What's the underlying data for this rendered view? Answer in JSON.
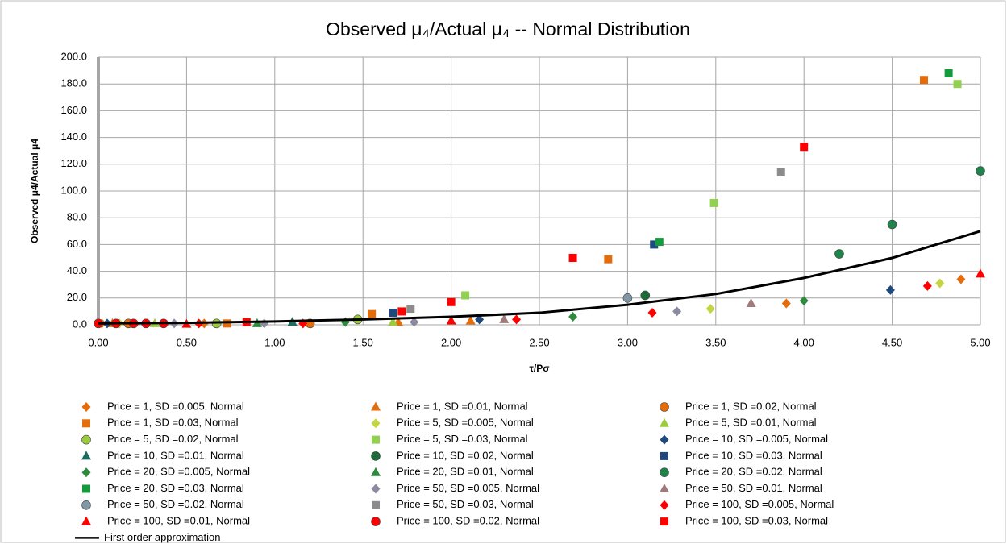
{
  "chart_data": {
    "type": "scatter",
    "title": "Observed μ₄/Actual μ₄ -- Normal Distribution",
    "x_label": "τ/Pσ",
    "y_label": "Observed μ4/Actual μ4",
    "xlim": [
      0,
      5
    ],
    "ylim": [
      0,
      200
    ],
    "grid": true,
    "legend": "bottom",
    "xticks": [
      {
        "value": 0,
        "label": "0.00"
      },
      {
        "value": 0.5,
        "label": "0.50"
      },
      {
        "value": 1,
        "label": "1.00"
      },
      {
        "value": 1.5,
        "label": "1.50"
      },
      {
        "value": 2,
        "label": "2.00"
      },
      {
        "value": 2.5,
        "label": "2.50"
      },
      {
        "value": 3,
        "label": "3.00"
      },
      {
        "value": 3.5,
        "label": "3.50"
      },
      {
        "value": 4,
        "label": "4.00"
      },
      {
        "value": 4.5,
        "label": "4.50"
      },
      {
        "value": 5,
        "label": "5.00"
      }
    ],
    "yticks": [
      {
        "value": 0,
        "label": "0.0"
      },
      {
        "value": 20,
        "label": "20.0"
      },
      {
        "value": 40,
        "label": "40.0"
      },
      {
        "value": 60,
        "label": "60.0"
      },
      {
        "value": 80,
        "label": "80.0"
      },
      {
        "value": 100,
        "label": "100.0"
      },
      {
        "value": 120,
        "label": "120.0"
      },
      {
        "value": 140,
        "label": "140.0"
      },
      {
        "value": 160,
        "label": "160.0"
      },
      {
        "value": 180,
        "label": "180.0"
      },
      {
        "value": 200,
        "label": "200.0"
      }
    ],
    "series": [
      {
        "name": "Price = 1, SD =0.005, Normal",
        "color": "#e46c0a",
        "marker": "diamond",
        "x": [
          0.02,
          0.6,
          3.9,
          4.89
        ],
        "values": [
          1,
          1,
          16,
          34
        ]
      },
      {
        "name": "Price = 1, SD =0.01, Normal",
        "color": "#e46c0a",
        "marker": "triangle",
        "x": [
          0.08,
          1.7,
          2.11
        ],
        "values": [
          1,
          2,
          3
        ]
      },
      {
        "name": "Price = 1, SD =0.02, Normal",
        "color": "#e46c0a",
        "marker": "circle",
        "x": [
          0.17,
          1.2
        ],
        "values": [
          1,
          1
        ]
      },
      {
        "name": "Price = 1, SD =0.03, Normal",
        "color": "#e46c0a",
        "marker": "square",
        "x": [
          0.73,
          1.55,
          2.89,
          4.68
        ],
        "values": [
          1,
          8,
          49,
          183
        ]
      },
      {
        "name": "Price = 5, SD =0.005, Normal",
        "color": "#c3d641",
        "marker": "diamond",
        "x": [
          0.12,
          3.47,
          4.77
        ],
        "values": [
          1,
          12,
          31
        ]
      },
      {
        "name": "Price = 5, SD =0.01, Normal",
        "color": "#9bcc3c",
        "marker": "triangle",
        "x": [
          0.32,
          1.67
        ],
        "values": [
          1,
          2
        ]
      },
      {
        "name": "Price = 5, SD =0.02, Normal",
        "color": "#9bcc3c",
        "marker": "circle",
        "x": [
          0.67,
          1.47
        ],
        "values": [
          1,
          4
        ]
      },
      {
        "name": "Price = 5, SD =0.03, Normal",
        "color": "#92d050",
        "marker": "square",
        "x": [
          2.08,
          3.49,
          4.87
        ],
        "values": [
          22,
          91,
          180
        ]
      },
      {
        "name": "Price = 10, SD =0.005, Normal",
        "color": "#1f497d",
        "marker": "diamond",
        "x": [
          0.05,
          2.16,
          4.49
        ],
        "values": [
          1,
          4,
          26
        ]
      },
      {
        "name": "Price = 10, SD =0.01, Normal",
        "color": "#1b6b5e",
        "marker": "triangle",
        "x": [
          1.1
        ],
        "values": [
          2
        ]
      },
      {
        "name": "Price = 10, SD =0.02, Normal",
        "color": "#1e6b3a",
        "marker": "circle",
        "x": [
          3.1
        ],
        "values": [
          22
        ]
      },
      {
        "name": "Price = 10, SD =0.03, Normal",
        "color": "#1f497d",
        "marker": "square",
        "x": [
          1.67,
          3.15
        ],
        "values": [
          9,
          60
        ]
      },
      {
        "name": "Price = 20, SD =0.005, Normal",
        "color": "#2e8b3e",
        "marker": "diamond",
        "x": [
          1.4,
          2.69,
          4.0
        ],
        "values": [
          2,
          6,
          18
        ]
      },
      {
        "name": "Price = 20, SD =0.01, Normal",
        "color": "#2e8b3e",
        "marker": "triangle",
        "x": [
          0.9
        ],
        "values": [
          1
        ]
      },
      {
        "name": "Price = 20, SD =0.02, Normal",
        "color": "#1e8449",
        "marker": "circle",
        "x": [
          4.2,
          4.5,
          5.0
        ],
        "values": [
          53,
          75,
          115
        ]
      },
      {
        "name": "Price = 20, SD =0.03, Normal",
        "color": "#149c3c",
        "marker": "square",
        "x": [
          3.18,
          4.82
        ],
        "values": [
          62,
          188
        ]
      },
      {
        "name": "Price = 50, SD =0.005, Normal",
        "color": "#8b8ba0",
        "marker": "diamond",
        "x": [
          0.43,
          0.94,
          1.79,
          3.28
        ],
        "values": [
          1,
          1,
          2,
          10
        ]
      },
      {
        "name": "Price = 50, SD =0.01, Normal",
        "color": "#a07a7a",
        "marker": "triangle",
        "x": [
          2.3,
          3.7
        ],
        "values": [
          4,
          16
        ]
      },
      {
        "name": "Price = 50, SD =0.02, Normal",
        "color": "#7f97a6",
        "marker": "circle",
        "x": [
          3.0
        ],
        "values": [
          20
        ]
      },
      {
        "name": "Price = 50, SD =0.03, Normal",
        "color": "#8c8c8c",
        "marker": "square",
        "x": [
          1.77,
          3.87
        ],
        "values": [
          12,
          114
        ]
      },
      {
        "name": "Price = 100, SD =0.005, Normal",
        "color": "#ff0000",
        "marker": "diamond",
        "x": [
          0.57,
          1.16,
          2.37,
          3.14,
          4.7
        ],
        "values": [
          1,
          1,
          4,
          9,
          29
        ]
      },
      {
        "name": "Price = 100, SD =0.01, Normal",
        "color": "#ff0000",
        "marker": "triangle",
        "x": [
          0.5,
          2.0,
          5.0
        ],
        "values": [
          0.5,
          3,
          38
        ]
      },
      {
        "name": "Price = 100, SD =0.02, Normal",
        "color": "#ff0000",
        "marker": "circle",
        "x": [
          0.0,
          0.1,
          0.2,
          0.27,
          0.37
        ],
        "values": [
          1,
          1,
          1,
          1,
          1
        ]
      },
      {
        "name": "Price = 100, SD =0.03, Normal",
        "color": "#ff0000",
        "marker": "square",
        "x": [
          0.84,
          1.72,
          2.0,
          2.69,
          4.0
        ],
        "values": [
          2,
          10,
          17,
          50,
          133
        ]
      },
      {
        "name": "First order approximation",
        "color": "#000000",
        "marker": "line",
        "x": [
          0,
          0.5,
          1,
          1.5,
          2,
          2.5,
          3,
          3.5,
          4,
          4.5,
          5
        ],
        "values": [
          1,
          1.4,
          2.5,
          4,
          6,
          9,
          15,
          23,
          35,
          50,
          70
        ]
      }
    ]
  }
}
